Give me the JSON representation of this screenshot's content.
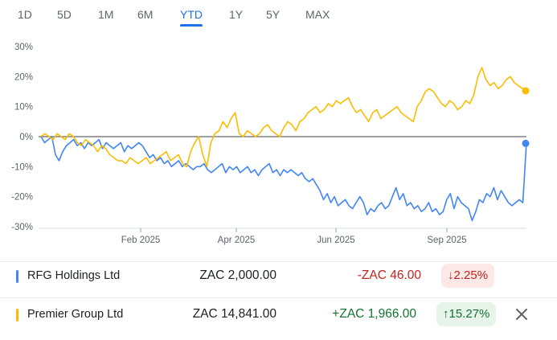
{
  "tabs": [
    "1D",
    "5D",
    "1M",
    "6M",
    "YTD",
    "1Y",
    "5Y",
    "MAX"
  ],
  "active_tab": "YTD",
  "chart_data": {
    "type": "line",
    "y_ticks": [
      "30%",
      "20%",
      "10%",
      "0%",
      "-10%",
      "-20%",
      "-30%"
    ],
    "x_ticks": [
      "Feb 2025",
      "Apr 2025",
      "Jun 2025",
      "Sep 2025"
    ],
    "ylim": [
      -30,
      30
    ],
    "baseline": 0,
    "series": [
      {
        "name": "RFG Holdings Ltd",
        "color": "#4285f4",
        "values": [
          0,
          -2,
          -1,
          0,
          -6,
          -8,
          -5,
          -3,
          -2,
          -1,
          -3,
          -2,
          -4,
          -2,
          -3,
          -2,
          -1,
          -4,
          -2,
          -3,
          -4,
          -3,
          -2,
          -5,
          -3,
          -4,
          -3,
          -2,
          -3,
          -5,
          -7,
          -6,
          -8,
          -7,
          -9,
          -8,
          -10,
          -9,
          -8,
          -10,
          -9,
          -10,
          -11,
          -10,
          -10,
          -9,
          -11,
          -12,
          -11,
          -10,
          -9,
          -12,
          -10,
          -11,
          -10,
          -12,
          -11,
          -10,
          -12,
          -11,
          -13,
          -11,
          -10,
          -9,
          -12,
          -11,
          -13,
          -11,
          -12,
          -11,
          -12,
          -13,
          -12,
          -14,
          -15,
          -14,
          -16,
          -18,
          -21,
          -19,
          -22,
          -20,
          -23,
          -22,
          -21,
          -23,
          -24,
          -22,
          -20,
          -22,
          -26,
          -24,
          -25,
          -23,
          -22,
          -24,
          -23,
          -20,
          -17,
          -21,
          -19,
          -23,
          -22,
          -24,
          -23,
          -25,
          -24,
          -22,
          -25,
          -24,
          -26,
          -25,
          -21,
          -19,
          -24,
          -20,
          -22,
          -23,
          -24,
          -28,
          -25,
          -21,
          -22,
          -19,
          -20,
          -17,
          -21,
          -18,
          -20,
          -22,
          -23,
          -22,
          -21,
          -22,
          -2
        ],
        "end_value": -2.25
      },
      {
        "name": "Premier Group Ltd",
        "color": "#fbbc04",
        "values": [
          0,
          1,
          0,
          -1,
          1,
          0,
          -1,
          1,
          0,
          -2,
          -3,
          -1,
          -2,
          -3,
          -5,
          -3,
          -4,
          -6,
          -7,
          -8,
          -8,
          -9,
          -7,
          -8,
          -9,
          -8,
          -7,
          -9,
          -8,
          -7,
          -6,
          -5,
          -8,
          -7,
          -6,
          -9,
          -10,
          -5,
          -2,
          0,
          -6,
          -10,
          -2,
          1,
          2,
          5,
          3,
          6,
          8,
          1,
          0,
          2,
          1,
          0,
          1,
          3,
          4,
          2,
          1,
          0,
          3,
          5,
          4,
          2,
          5,
          6,
          8,
          9,
          10,
          8,
          9,
          11,
          10,
          12,
          11,
          12,
          13,
          10,
          8,
          9,
          7,
          5,
          8,
          9,
          6,
          7,
          8,
          9,
          10,
          8,
          7,
          6,
          5,
          10,
          12,
          15,
          16,
          15,
          13,
          11,
          10,
          12,
          11,
          9,
          10,
          12,
          11,
          14,
          20,
          23,
          19,
          17,
          18,
          16,
          17,
          19,
          20,
          18,
          17,
          16,
          15
        ],
        "end_value": 15.27
      }
    ]
  },
  "rows": [
    {
      "name": "RFG Holdings Ltd",
      "color": "#4285f4",
      "price": "ZAC 2,000.00",
      "change": "-ZAC 46.00",
      "percent": "2.25%",
      "arrow": "↓",
      "direction": "neg"
    },
    {
      "name": "Premier Group Ltd",
      "color": "#fbbc04",
      "price": "ZAC 14,841.00",
      "change": "+ZAC 1,966.00",
      "percent": "15.27%",
      "arrow": "↑",
      "direction": "pos",
      "close_icon": "close-icon"
    }
  ]
}
